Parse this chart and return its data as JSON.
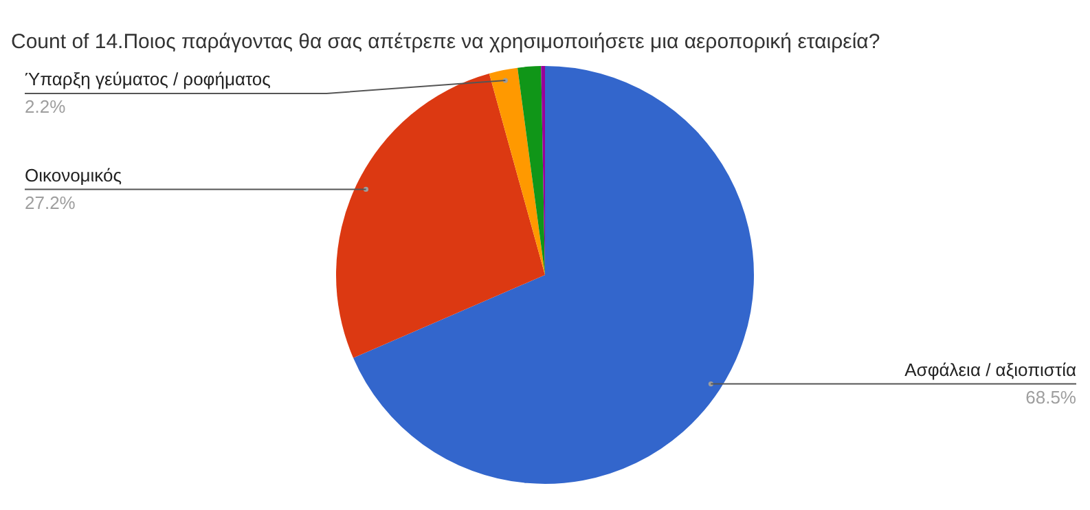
{
  "chart_data": {
    "type": "pie",
    "title": "Count of 14.Ποιος παράγοντας θα σας απέτρεπε να χρησιμοποιήσετε μια αεροπορική εταιρεία?",
    "categories": [
      "Ασφάλεια / αξιοπιστία",
      "Οικονομικός",
      "Ύπαρξη γεύματος / ροφήματος",
      null,
      null
    ],
    "values": [
      68.5,
      27.2,
      2.2,
      1.8,
      0.3
    ],
    "colors": [
      "#3366cc",
      "#dc3912",
      "#ff9900",
      "#109618",
      "#990099"
    ],
    "value_labels": [
      "68.5%",
      "27.2%",
      "2.2%",
      null,
      null
    ]
  }
}
